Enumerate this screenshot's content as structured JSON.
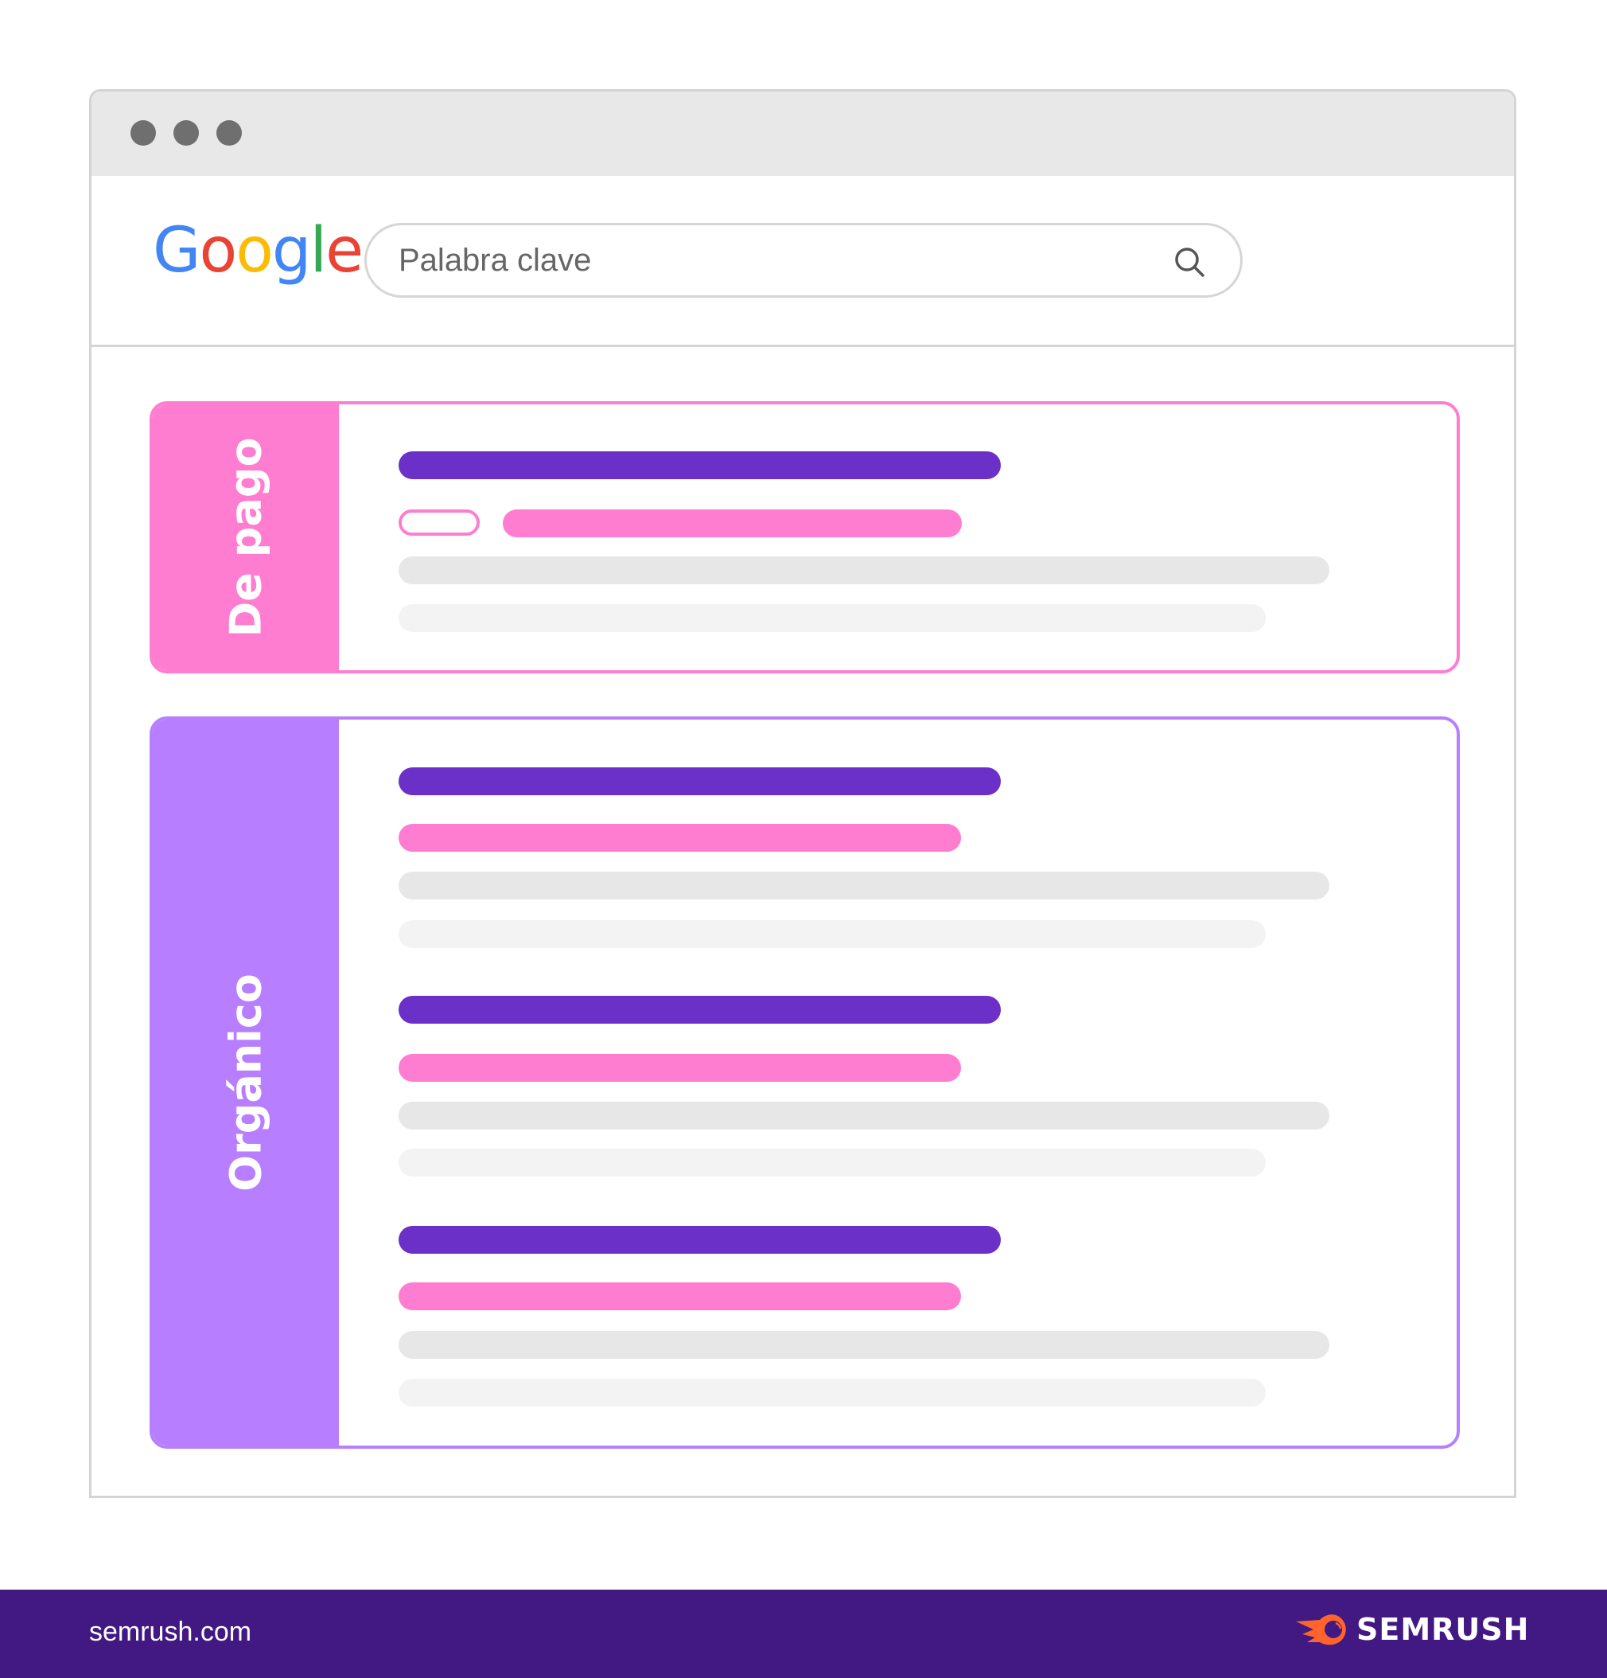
{
  "browser": {
    "dots": 3
  },
  "google": {
    "logo_letters": [
      "G",
      "o",
      "o",
      "g",
      "l",
      "e"
    ],
    "logo_colors": [
      "#4285f4",
      "#ea4335",
      "#fbbc05",
      "#4285f4",
      "#34a853",
      "#ea4335"
    ]
  },
  "search": {
    "value": "Palabra clave",
    "icon": "search-icon"
  },
  "sections": {
    "paid": {
      "label": "De pago",
      "color": "#ff7dd1"
    },
    "organic": {
      "label": "Orgánico",
      "color": "#b77fff"
    }
  },
  "colors": {
    "title_bar": "#6a30c8",
    "url_bar": "#ff7dd1",
    "footer": "#421983",
    "semrush_logo": "#ff642d"
  },
  "footer": {
    "url": "semrush.com",
    "brand": "SEMRUSH"
  }
}
